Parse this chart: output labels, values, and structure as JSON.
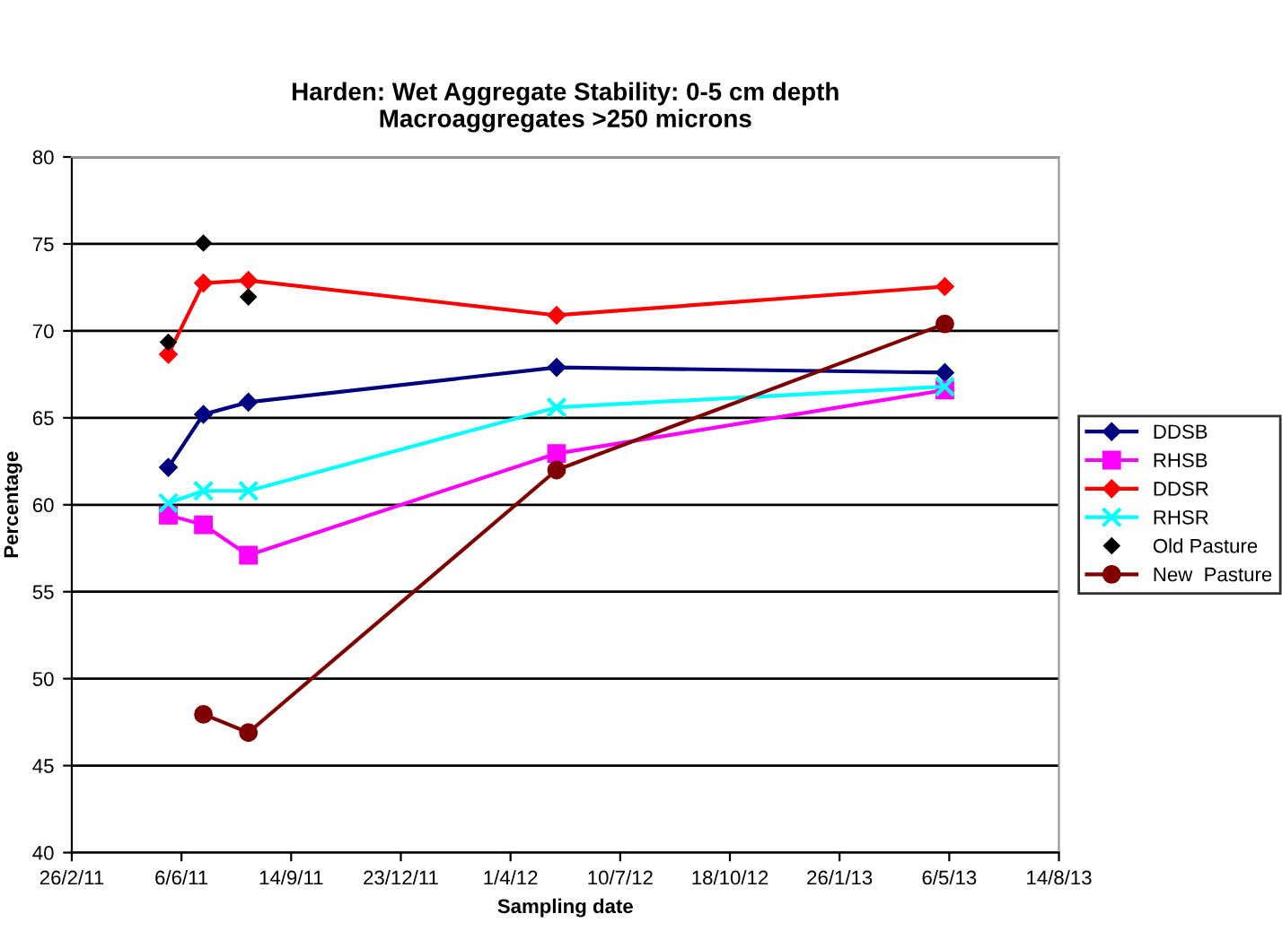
{
  "chart_data": {
    "type": "line",
    "title": "Harden: Wet Aggregate Stability: 0-5 cm depth\nMacroaggregates >250 microns",
    "xlabel": "Sampling date",
    "ylabel": "Percentage",
    "x": [
      "2011-05-25",
      "2011-06-26",
      "2011-08-06",
      "2012-05-13",
      "2013-05-02"
    ],
    "series": [
      {
        "name": "DDSB",
        "color": "#000080",
        "marker": "diamond",
        "values": [
          62.15,
          65.2,
          65.9,
          67.9,
          67.6
        ]
      },
      {
        "name": "RHSB",
        "color": "#ff00ff",
        "marker": "square",
        "values": [
          59.4,
          58.85,
          57.1,
          62.95,
          66.6
        ]
      },
      {
        "name": "DDSR",
        "color": "#ff0000",
        "marker": "diamond",
        "values": [
          68.65,
          72.75,
          72.9,
          70.9,
          72.55
        ]
      },
      {
        "name": "RHSR",
        "color": "#00ffff",
        "marker": "cross",
        "values": [
          60.1,
          60.8,
          60.8,
          65.6,
          66.8
        ]
      },
      {
        "name": "Old Pasture",
        "type": "scatter",
        "color": "#000000",
        "marker": "diamond",
        "values": [
          69.35,
          75.05,
          71.95,
          null,
          null
        ]
      },
      {
        "name": "New  Pasture",
        "color": "#800000",
        "marker": "circle",
        "values": [
          null,
          47.95,
          46.9,
          62.0,
          70.4
        ]
      }
    ],
    "xlim": [
      "2011-02-26",
      "2013-08-14"
    ],
    "xticks": [
      {
        "value": "2011-02-26",
        "label": "26/2/11"
      },
      {
        "value": "2011-06-06",
        "label": "6/6/11"
      },
      {
        "value": "2011-09-14",
        "label": "14/9/11"
      },
      {
        "value": "2011-12-23",
        "label": "23/12/11"
      },
      {
        "value": "2012-04-01",
        "label": "1/4/12"
      },
      {
        "value": "2012-07-10",
        "label": "10/7/12"
      },
      {
        "value": "2012-10-18",
        "label": "18/10/12"
      },
      {
        "value": "2013-01-26",
        "label": "26/1/13"
      },
      {
        "value": "2013-05-06",
        "label": "6/5/13"
      },
      {
        "value": "2013-08-14",
        "label": "14/8/13"
      }
    ],
    "ylim": [
      40,
      80
    ],
    "yticks": [
      40,
      45,
      50,
      55,
      60,
      65,
      70,
      75,
      80
    ],
    "grid": "y",
    "legend": "right"
  }
}
